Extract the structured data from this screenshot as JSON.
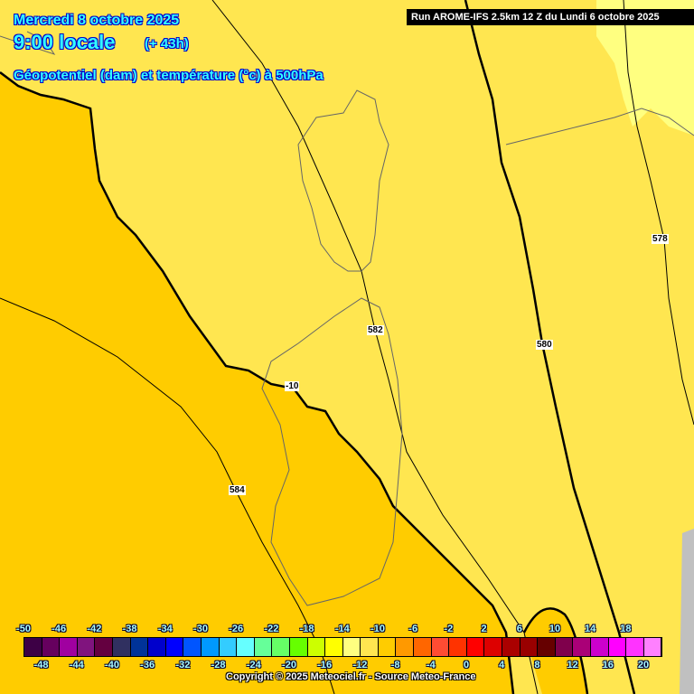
{
  "header": {
    "date": "Mercredi 8 octobre 2025",
    "time": "9:00 locale",
    "lead": "(+ 43h)",
    "field": "Géopotentiel (dam) et température (°c) à 500hPa",
    "run": "Run AROME-IFS 2.5km 12 Z du Lundi 6 octobre 2025"
  },
  "contour_labels": {
    "g578": "578",
    "g580": "580",
    "g582": "582",
    "g584": "584",
    "t_minus10": "-10"
  },
  "colors": {
    "yellow": "#ffe650",
    "orange": "#ffcc00",
    "light": "#ffff80",
    "nodata": "#c0c0c0"
  },
  "legend": {
    "top_ticks": [
      "-50",
      "-46",
      "-42",
      "-38",
      "-34",
      "-30",
      "-26",
      "-22",
      "-18",
      "-14",
      "-10",
      "-6",
      "-2",
      "2",
      "6",
      "10",
      "14",
      "18"
    ],
    "bottom_ticks": [
      "-48",
      "-44",
      "-40",
      "-36",
      "-32",
      "-28",
      "-24",
      "-20",
      "-16",
      "-12",
      "-8",
      "-4",
      "0",
      "4",
      "8",
      "12",
      "16",
      "20"
    ],
    "colors": [
      "#3d0045",
      "#66005e",
      "#a000a0",
      "#80147e",
      "#640040",
      "#303060",
      "#003399",
      "#0000cc",
      "#0000ff",
      "#0055ff",
      "#0099ff",
      "#33ccff",
      "#66ffff",
      "#66ff99",
      "#66ff66",
      "#66ff00",
      "#ccff00",
      "#ffff00",
      "#ffff80",
      "#ffe650",
      "#ffcc00",
      "#ff9900",
      "#ff6600",
      "#ff4c33",
      "#ff3300",
      "#ff0000",
      "#dd0000",
      "#aa0000",
      "#990000",
      "#660000",
      "#7f004c",
      "#aa0077",
      "#cc00cc",
      "#ff00ff",
      "#ff33ff",
      "#ff80ff"
    ]
  },
  "copyright": "Copyright © 2025 Meteociel.fr - Source Meteo-France"
}
